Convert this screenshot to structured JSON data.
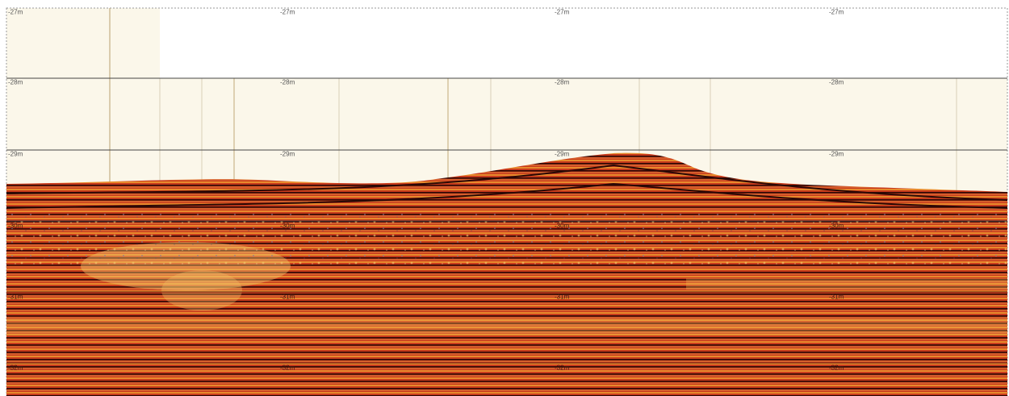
{
  "depth_grid": {
    "rows": [
      [
        "-27m",
        "-27m",
        "-27m",
        "-27m"
      ],
      [
        "-28m",
        "-28m",
        "-28m",
        "-28m"
      ],
      [
        "-29m",
        "-29m",
        "-29m",
        "-29m"
      ],
      [
        "-30m",
        "-30m",
        "-30m",
        "-30m"
      ],
      [
        "-31m",
        "-31m",
        "-31m",
        "-31m"
      ],
      [
        "-32m",
        "-32m",
        "-32m",
        "-32m"
      ]
    ]
  }
}
